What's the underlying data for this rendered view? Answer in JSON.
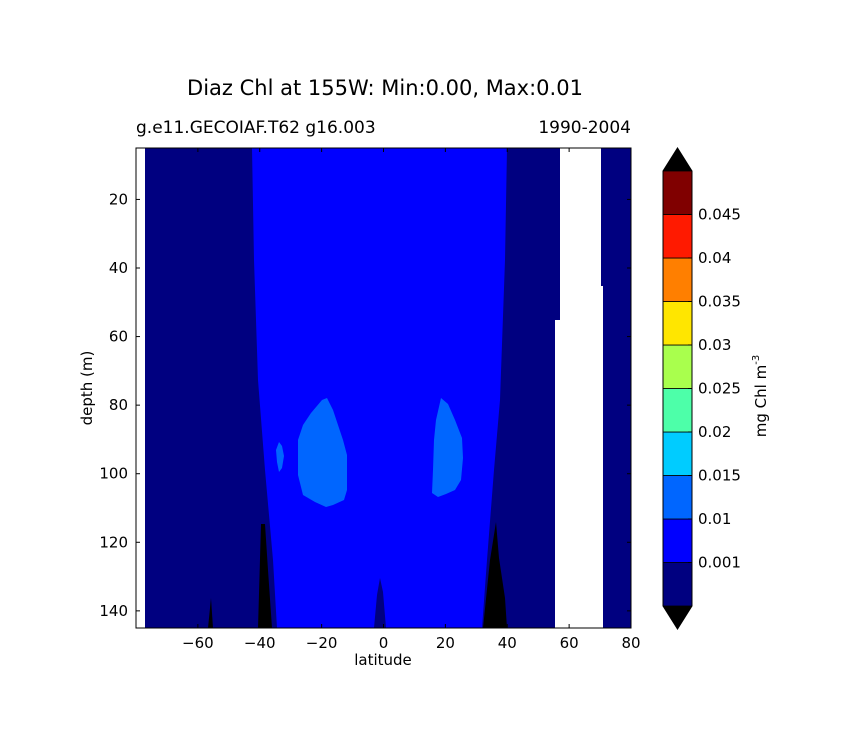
{
  "chart_data": {
    "type": "heatmap",
    "title": "Diaz Chl at 155W: Min:0.00, Max:0.01",
    "subtitle_left": "g.e11.GECOIAF.T62 g16.003",
    "subtitle_right": "1990-2004",
    "xlabel": "latitude",
    "ylabel": "depth (m)",
    "xlim": [
      -80,
      80
    ],
    "ylim": [
      145,
      5
    ],
    "x_ticks": [
      -60,
      -40,
      -20,
      0,
      20,
      40,
      60,
      80
    ],
    "y_ticks": [
      20,
      40,
      60,
      80,
      100,
      120,
      140
    ],
    "colorbar": {
      "label": "mg Chl m",
      "label_exponent": "-3",
      "levels": [
        0.001,
        0.01,
        0.015,
        0.02,
        0.025,
        0.03,
        0.035,
        0.04,
        0.045
      ],
      "tick_labels": [
        "0.001",
        "0.01",
        "0.015",
        "0.02",
        "0.025",
        "0.03",
        "0.035",
        "0.04",
        "0.045"
      ],
      "colors": [
        "#000080",
        "#0000ff",
        "#0066ff",
        "#00ccff",
        "#4dffa9",
        "#a9ff4d",
        "#ffe600",
        "#ff7f00",
        "#ff1a00",
        "#800000"
      ],
      "extend": "both",
      "under_color": "#000000",
      "over_color": "#000000"
    },
    "missing_color": "#ffffff",
    "regions": [
      {
        "level": "<0.001",
        "color": "#000080",
        "desc": "background"
      },
      {
        "level": "0.001-0.01",
        "color": "#0000ff",
        "desc": "central wedge"
      },
      {
        "level": "0.01-0.015",
        "color": "#0066ff",
        "desc": "blobs near 80-110 m"
      },
      {
        "level": "below min",
        "color": "#000000",
        "desc": "deep spikes"
      },
      {
        "level": "no data",
        "color": "#ffffff",
        "desc": "land/missing"
      }
    ]
  }
}
